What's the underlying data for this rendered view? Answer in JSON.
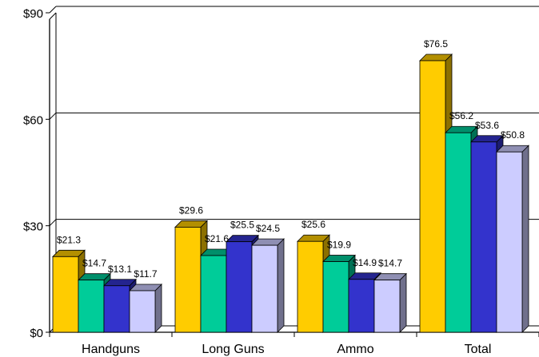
{
  "chart_data": {
    "type": "bar",
    "style": "3d-clustered-column",
    "categories": [
      "Handguns",
      "Long Guns",
      "Ammo",
      "Total"
    ],
    "series": [
      {
        "values": [
          21.3,
          29.6,
          25.6,
          76.5
        ],
        "color": "#ffcc00"
      },
      {
        "values": [
          14.7,
          21.6,
          19.9,
          56.2
        ],
        "color": "#00cc99"
      },
      {
        "values": [
          13.1,
          25.5,
          14.9,
          53.6
        ],
        "color": "#3333cc"
      },
      {
        "values": [
          11.7,
          24.5,
          14.7,
          50.8
        ],
        "color": "#ccccff"
      }
    ],
    "data_labels": [
      [
        "$21.3",
        "$14.7",
        "$13.1",
        "$11.7"
      ],
      [
        "$29.6",
        "$21.6",
        "$25.5",
        "$24.5"
      ],
      [
        "$25.6",
        "$19.9",
        "$14.9",
        "$14.7"
      ],
      [
        "$76.5",
        "$56.2",
        "$53.6",
        "$50.8"
      ]
    ],
    "y_ticks": [
      0,
      30,
      60,
      90
    ],
    "y_tick_labels": [
      "$0",
      "$30",
      "$60",
      "$90"
    ],
    "ylim": [
      0,
      90
    ],
    "grid": true,
    "legend": "none",
    "title": "",
    "xlabel": "",
    "ylabel": ""
  }
}
